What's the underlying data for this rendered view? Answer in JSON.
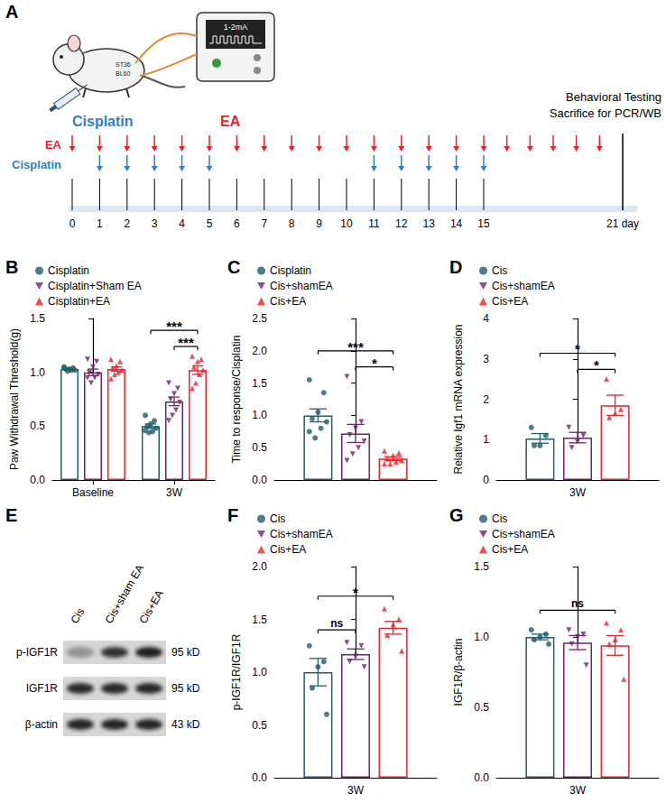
{
  "panel_a": {
    "letter": "A",
    "mouse_label": "Cisplatin",
    "device_label": "EA",
    "device_display": "1-2mA",
    "acupoints": [
      "ST36",
      "BL60"
    ],
    "outcome": [
      "Behavioral Testing",
      "Sacrifice for PCR/WB"
    ],
    "timeline": {
      "rows": [
        {
          "label": "EA",
          "color": "#e8232a",
          "days": [
            0,
            1,
            2,
            3,
            4,
            5,
            6,
            7,
            8,
            9,
            10,
            11,
            12,
            13,
            14,
            15,
            16,
            17,
            18,
            19,
            20
          ]
        },
        {
          "label": "Cisplatin",
          "color": "#2f7fc8",
          "days": [
            1,
            2,
            3,
            4,
            5,
            11,
            12,
            13,
            14,
            15
          ]
        }
      ],
      "day_ticks": [
        0,
        1,
        2,
        3,
        4,
        5,
        6,
        7,
        8,
        9,
        10,
        11,
        12,
        13,
        14,
        15,
        {
          "value": 21,
          "label": "21 day"
        }
      ]
    }
  },
  "panel_e": {
    "letter": "E",
    "lanes": [
      "Cis",
      "Cis+sham EA",
      "Cis+EA"
    ],
    "rows": [
      {
        "label": "p-IGF1R",
        "size": "95 kD"
      },
      {
        "label": "IGF1R",
        "size": "95 kD"
      },
      {
        "label": "β-actin",
        "size": "43 kD"
      }
    ]
  },
  "chart_data": [
    {
      "panel": "B",
      "type": "bar",
      "y_label": "Paw Withdrawal Threshold(g)",
      "categories": [
        "Baseline",
        "3W"
      ],
      "ylim": [
        0,
        1.5
      ],
      "yticks": [
        {
          "value": 0,
          "label": "0.0"
        },
        {
          "value": 0.5,
          "label": "0.5"
        },
        {
          "value": 1,
          "label": "1.0"
        },
        {
          "value": 1.5,
          "label": "1.5"
        }
      ],
      "grid": false,
      "legend": "top-left",
      "series": [
        {
          "name": "Cisplatin",
          "color": "#215d6e",
          "marker": "circle",
          "values": [
            1.03,
            0.5
          ],
          "errors": [
            0.01,
            0.02
          ],
          "points": [
            [
              1.05,
              1.04,
              1.03,
              1.03,
              1.02,
              1.02,
              1.01,
              1.04
            ],
            [
              0.6,
              0.55,
              0.52,
              0.5,
              0.48,
              0.45,
              0.44,
              0.46
            ]
          ]
        },
        {
          "name": "Cisplatin+Sham EA",
          "color": "#6e2466",
          "marker": "triangle_down",
          "values": [
            1.0,
            0.73
          ],
          "errors": [
            0.03,
            0.04
          ],
          "points": [
            [
              1.12,
              1.1,
              1.05,
              1.0,
              0.98,
              0.95,
              0.9,
              0.95
            ],
            [
              0.9,
              0.85,
              0.8,
              0.75,
              0.72,
              0.65,
              0.6,
              0.55
            ]
          ]
        },
        {
          "name": "Cisplatin+EA",
          "color": "#e8232a",
          "marker": "triangle",
          "values": [
            1.03,
            1.02
          ],
          "errors": [
            0.02,
            0.04
          ],
          "points": [
            [
              1.12,
              1.1,
              1.06,
              1.04,
              1.02,
              1.0,
              0.98,
              0.94
            ],
            [
              1.15,
              1.12,
              1.1,
              1.05,
              1.02,
              0.98,
              0.9,
              0.85
            ]
          ]
        }
      ],
      "annotations": [
        {
          "category": "3W",
          "from": "Cisplatin",
          "to": "Cisplatin+EA",
          "text": "***"
        },
        {
          "category": "3W",
          "from": "Cisplatin+Sham EA",
          "to": "Cisplatin+EA",
          "text": "***"
        }
      ]
    },
    {
      "panel": "C",
      "type": "bar",
      "y_label": "Time to response/Cisplatin",
      "categories": [
        null
      ],
      "ylim": [
        0,
        2.5
      ],
      "yticks": [
        {
          "value": 0,
          "label": "0.0"
        },
        {
          "value": 0.5,
          "label": "0.5"
        },
        {
          "value": 1,
          "label": "1.0"
        },
        {
          "value": 1.5,
          "label": "1.5"
        },
        {
          "value": 2,
          "label": "2.0"
        },
        {
          "value": 2.5,
          "label": "2.5"
        }
      ],
      "grid": false,
      "legend": "top-left",
      "tick_labels": "y",
      "series": [
        {
          "name": "Cisplatin",
          "color": "#215d6e",
          "marker": "circle",
          "values": [
            1.0
          ],
          "errors": [
            0.1
          ],
          "points": [
            [
              1.55,
              1.35,
              1.05,
              0.95,
              0.9,
              0.8,
              0.65,
              0.75
            ]
          ]
        },
        {
          "name": "Cis+shamEA",
          "color": "#6e2466",
          "marker": "triangle_down",
          "values": [
            0.72
          ],
          "errors": [
            0.14
          ],
          "points": [
            [
              1.6,
              0.9,
              0.8,
              0.7,
              0.6,
              0.5,
              0.4,
              0.3
            ]
          ]
        },
        {
          "name": "Cis+EA",
          "color": "#e8232a",
          "marker": "triangle",
          "values": [
            0.33
          ],
          "errors": [
            0.03
          ],
          "points": [
            [
              0.45,
              0.42,
              0.38,
              0.33,
              0.3,
              0.28,
              0.25,
              0.25
            ]
          ]
        }
      ],
      "annotations": [
        {
          "category": null,
          "from": "Cisplatin",
          "to": "Cis+EA",
          "text": "***"
        },
        {
          "category": null,
          "from": "Cis+shamEA",
          "to": "Cis+EA",
          "text": "*"
        }
      ]
    },
    {
      "panel": "D",
      "type": "bar",
      "y_label": "Relative Igf1 mRNA expression",
      "categories": [
        "3W"
      ],
      "ylim": [
        0,
        4
      ],
      "yticks": [
        0,
        1,
        2,
        3,
        4
      ],
      "grid": false,
      "legend": "top-left",
      "series": [
        {
          "name": "Cis",
          "color": "#215d6e",
          "marker": "circle",
          "values": [
            1.03
          ],
          "errors": [
            0.12
          ],
          "points": [
            [
              1.3,
              1.1,
              0.85,
              0.85
            ]
          ]
        },
        {
          "name": "Cis+shamEA",
          "color": "#6e2466",
          "marker": "triangle_down",
          "values": [
            1.05
          ],
          "errors": [
            0.13
          ],
          "points": [
            [
              1.3,
              1.1,
              0.95,
              0.8
            ]
          ]
        },
        {
          "name": "Cis+EA",
          "color": "#e8232a",
          "marker": "triangle",
          "values": [
            1.85
          ],
          "errors": [
            0.25
          ],
          "points": [
            [
              2.5,
              1.75,
              1.65,
              1.55
            ]
          ]
        }
      ],
      "annotations": [
        {
          "category": "3W",
          "from": "Cis",
          "to": "Cis+EA",
          "text": "*"
        },
        {
          "category": "3W",
          "from": "Cis+shamEA",
          "to": "Cis+EA",
          "text": "*"
        }
      ]
    },
    {
      "panel": "F",
      "type": "bar",
      "y_label": "p-IGF1R/IGF1R",
      "categories": [
        "3W"
      ],
      "ylim": [
        0,
        2
      ],
      "yticks": [
        {
          "value": 0,
          "label": "0.0"
        },
        {
          "value": 0.5,
          "label": "0.5"
        },
        {
          "value": 1,
          "label": "1.0"
        },
        {
          "value": 1.5,
          "label": "1.5"
        },
        {
          "value": 2,
          "label": "2.0"
        }
      ],
      "grid": false,
      "legend": "top-left",
      "series": [
        {
          "name": "Cis",
          "color": "#215d6e",
          "marker": "circle",
          "values": [
            1.0
          ],
          "errors": [
            0.13
          ],
          "points": [
            [
              1.25,
              1.1,
              1.05,
              0.85,
              0.6
            ]
          ]
        },
        {
          "name": "Cis+shamEA",
          "color": "#6e2466",
          "marker": "triangle_down",
          "values": [
            1.17
          ],
          "errors": [
            0.05
          ],
          "points": [
            [
              1.28,
              1.25,
              1.15,
              1.1,
              1.05
            ]
          ]
        },
        {
          "name": "Cis+EA",
          "color": "#e8232a",
          "marker": "triangle",
          "values": [
            1.42
          ],
          "errors": [
            0.06
          ],
          "points": [
            [
              1.6,
              1.5,
              1.45,
              1.35,
              1.2
            ]
          ]
        }
      ],
      "annotations": [
        {
          "category": "3W",
          "from": "Cis",
          "to": "Cis+shamEA",
          "text": "ns"
        },
        {
          "category": "3W",
          "from": "Cis",
          "to": "Cis+EA",
          "text": "*"
        }
      ]
    },
    {
      "panel": "G",
      "type": "bar",
      "y_label": "IGF1R/β-actin",
      "categories": [
        "3W"
      ],
      "ylim": [
        0,
        1.5
      ],
      "yticks": [
        {
          "value": 0,
          "label": "0.0"
        },
        {
          "value": 0.5,
          "label": "0.5"
        },
        {
          "value": 1,
          "label": "1.0"
        },
        {
          "value": 1.5,
          "label": "1.5"
        }
      ],
      "grid": false,
      "legend": "top-left",
      "series": [
        {
          "name": "Cis",
          "color": "#215d6e",
          "marker": "circle",
          "values": [
            1.0
          ],
          "errors": [
            0.02
          ],
          "points": [
            [
              1.05,
              1.02,
              1.0,
              0.98,
              0.95
            ]
          ]
        },
        {
          "name": "Cis+shamEA",
          "color": "#6e2466",
          "marker": "triangle_down",
          "values": [
            0.96
          ],
          "errors": [
            0.05
          ],
          "points": [
            [
              1.05,
              1.02,
              1.0,
              0.95,
              0.8
            ]
          ]
        },
        {
          "name": "Cis+EA",
          "color": "#e8232a",
          "marker": "triangle",
          "values": [
            0.94
          ],
          "errors": [
            0.07
          ],
          "points": [
            [
              1.1,
              1.05,
              0.98,
              0.95,
              0.7
            ]
          ]
        }
      ],
      "annotations": [
        {
          "category": "3W",
          "from": "Cis",
          "to": "Cis+EA",
          "text": "ns"
        }
      ]
    }
  ]
}
